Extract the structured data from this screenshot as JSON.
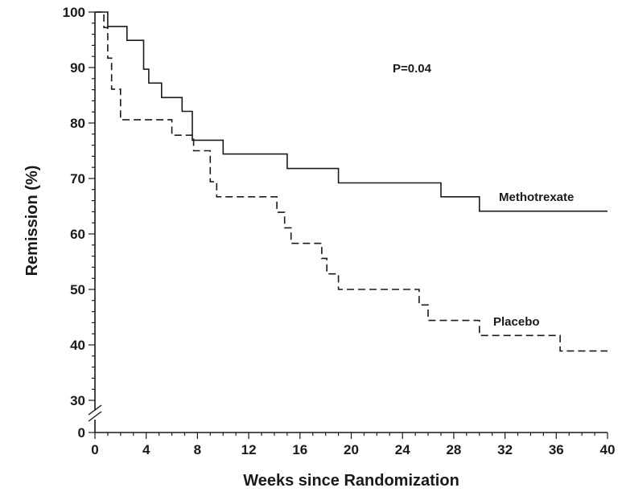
{
  "chart_data": {
    "type": "line",
    "step": true,
    "title": "",
    "xlabel": "Weeks since Randomization",
    "ylabel": "Remission (%)",
    "xlim": [
      0,
      40
    ],
    "ylim": [
      30,
      100
    ],
    "y_break": true,
    "y_break_bottom_label": "0",
    "xticks": [
      "0",
      "4",
      "8",
      "12",
      "16",
      "20",
      "24",
      "28",
      "32",
      "36",
      "40"
    ],
    "yticks": [
      "30",
      "40",
      "50",
      "60",
      "70",
      "80",
      "90",
      "100"
    ],
    "grid": false,
    "legend": "none",
    "annotation": "P=0.04",
    "series": [
      {
        "name": "Methotrexate",
        "line_style": "solid",
        "color": "#1a1a1a",
        "x": [
          0,
          1.0,
          2.5,
          3.8,
          4.2,
          5.2,
          6.8,
          7.6,
          10.0,
          15.0,
          19.0,
          27.0,
          30.0,
          40.0
        ],
        "y": [
          100,
          97.4,
          94.9,
          89.7,
          87.2,
          84.6,
          82.1,
          76.9,
          74.4,
          71.8,
          69.2,
          66.7,
          64.1,
          64.1
        ]
      },
      {
        "name": "Placebo",
        "line_style": "dashed",
        "color": "#1a1a1a",
        "x": [
          0,
          0.7,
          1.0,
          1.3,
          2.0,
          6.0,
          7.7,
          9.0,
          9.5,
          14.2,
          14.8,
          15.3,
          17.7,
          18.1,
          19.0,
          20.0,
          25.3,
          26.0,
          30.0,
          36.3,
          40.0
        ],
        "y": [
          100,
          97.2,
          91.7,
          86.1,
          80.6,
          77.8,
          75.0,
          69.4,
          66.7,
          63.9,
          61.1,
          58.3,
          55.6,
          52.8,
          50.0,
          50.0,
          47.2,
          44.4,
          41.7,
          38.9,
          38.9
        ]
      }
    ]
  }
}
